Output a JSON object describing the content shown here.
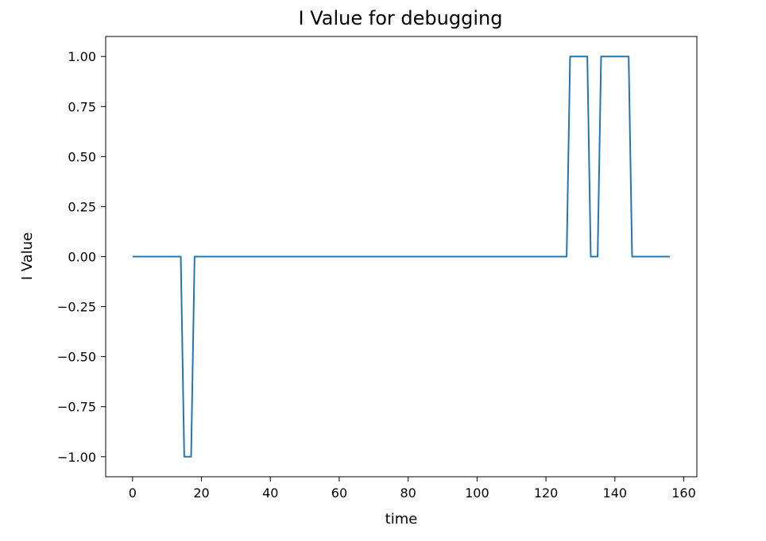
{
  "chart_data": {
    "type": "line",
    "title": "I Value for debugging",
    "xlabel": "time",
    "ylabel": "I Value",
    "xlim": [
      -7.8,
      163.8
    ],
    "ylim": [
      -1.1,
      1.1
    ],
    "xticks": [
      0,
      20,
      40,
      60,
      80,
      100,
      120,
      140,
      160
    ],
    "xtick_labels": [
      "0",
      "20",
      "40",
      "60",
      "80",
      "100",
      "120",
      "140",
      "160"
    ],
    "yticks": [
      1.0,
      0.75,
      0.5,
      0.25,
      0.0,
      -0.25,
      -0.5,
      -0.75,
      -1.0
    ],
    "ytick_labels": [
      "1.00",
      "0.75",
      "0.50",
      "0.25",
      "0.00",
      "−0.25",
      "−0.50",
      "−0.75",
      "−1.00"
    ],
    "grid": false,
    "series": [
      {
        "color": "#1f77b4",
        "x": [
          0,
          14,
          15,
          17,
          18,
          126,
          127,
          132,
          133,
          135,
          136,
          144,
          145,
          156
        ],
        "y": [
          0,
          0,
          -1,
          -1,
          0,
          0,
          1,
          1,
          0,
          0,
          1,
          1,
          0,
          0
        ]
      }
    ]
  }
}
